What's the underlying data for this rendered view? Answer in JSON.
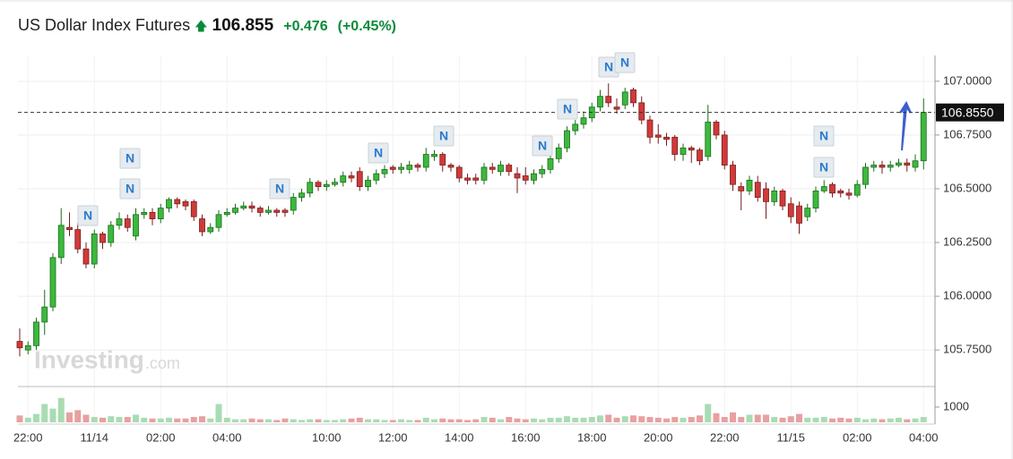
{
  "header": {
    "title": "US Dollar Index Futures",
    "price": "106.855",
    "change": "+0.476",
    "change_pct": "(+0.45%)"
  },
  "chart_data": {
    "type": "candlestick",
    "categories": [
      null,
      "22:00",
      null,
      null,
      null,
      null,
      null,
      null,
      null,
      "11/14",
      null,
      null,
      null,
      null,
      null,
      null,
      null,
      "02:00",
      null,
      null,
      null,
      null,
      null,
      null,
      null,
      "04:00",
      null,
      null,
      null,
      null,
      null,
      null,
      null,
      null,
      null,
      null,
      null,
      "10:00",
      null,
      null,
      null,
      null,
      null,
      null,
      null,
      "12:00",
      null,
      null,
      null,
      null,
      null,
      null,
      null,
      "14:00",
      null,
      null,
      null,
      null,
      null,
      null,
      null,
      "16:00",
      null,
      null,
      null,
      null,
      null,
      null,
      null,
      "18:00",
      null,
      null,
      null,
      null,
      null,
      null,
      null,
      "20:00",
      null,
      null,
      null,
      null,
      null,
      null,
      null,
      "22:00",
      null,
      null,
      null,
      null,
      null,
      null,
      null,
      "11/15",
      null,
      null,
      null,
      null,
      null,
      null,
      null,
      "02:00",
      null,
      null,
      null,
      null,
      null,
      null,
      null,
      "04:00"
    ],
    "open": [
      105.79,
      105.75,
      105.77,
      105.88,
      105.95,
      106.18,
      106.32,
      106.31,
      106.22,
      106.15,
      106.29,
      106.25,
      106.33,
      106.36,
      106.28,
      106.38,
      106.39,
      106.36,
      106.41,
      106.45,
      106.44,
      106.44,
      106.36,
      106.3,
      106.32,
      106.38,
      106.39,
      106.41,
      106.42,
      106.41,
      106.39,
      106.4,
      106.4,
      106.4,
      106.46,
      106.48,
      106.53,
      106.51,
      106.52,
      106.53,
      106.56,
      106.58,
      106.51,
      106.54,
      106.57,
      106.6,
      106.59,
      106.59,
      106.61,
      106.6,
      106.65,
      106.66,
      106.61,
      106.6,
      106.55,
      106.55,
      106.54,
      106.6,
      106.58,
      106.61,
      106.57,
      106.56,
      106.54,
      106.57,
      106.59,
      106.64,
      106.69,
      106.77,
      106.8,
      106.83,
      106.88,
      106.93,
      106.88,
      106.89,
      106.96,
      106.9,
      106.82,
      106.75,
      106.74,
      106.74,
      106.66,
      106.69,
      106.68,
      106.65,
      106.81,
      106.75,
      106.61,
      106.51,
      106.49,
      106.53,
      106.5,
      106.44,
      106.49,
      106.43,
      106.42,
      106.37,
      106.41,
      106.49,
      106.52,
      106.49,
      106.48,
      106.47,
      106.52,
      106.6,
      106.61,
      106.6,
      106.61,
      106.62,
      106.6,
      106.63
    ],
    "high": [
      105.85,
      105.79,
      105.9,
      106.03,
      106.2,
      106.41,
      106.39,
      106.34,
      106.25,
      106.31,
      106.3,
      106.35,
      106.39,
      106.38,
      106.41,
      106.41,
      106.41,
      106.43,
      106.46,
      106.46,
      106.45,
      106.45,
      106.38,
      106.34,
      106.4,
      106.41,
      106.43,
      106.44,
      106.44,
      106.42,
      106.42,
      106.41,
      106.41,
      106.48,
      106.5,
      106.55,
      106.54,
      106.54,
      106.55,
      106.58,
      106.58,
      106.6,
      106.56,
      106.59,
      106.61,
      106.61,
      106.62,
      106.63,
      106.62,
      106.69,
      106.68,
      106.67,
      106.62,
      106.61,
      106.57,
      106.57,
      106.62,
      106.62,
      106.63,
      106.62,
      106.6,
      106.6,
      106.59,
      106.61,
      106.67,
      106.71,
      106.79,
      106.82,
      106.86,
      106.9,
      106.96,
      106.99,
      106.92,
      106.97,
      106.97,
      106.93,
      106.84,
      106.8,
      106.76,
      106.75,
      106.71,
      106.7,
      106.69,
      106.89,
      106.82,
      106.77,
      106.63,
      106.53,
      106.56,
      106.56,
      106.53,
      106.51,
      106.5,
      106.46,
      106.44,
      106.43,
      106.51,
      106.54,
      106.53,
      106.5,
      106.5,
      106.54,
      106.62,
      106.63,
      106.63,
      106.63,
      106.64,
      106.64,
      106.66,
      106.92
    ],
    "low": [
      105.72,
      105.73,
      105.75,
      105.82,
      105.93,
      106.15,
      106.28,
      106.2,
      106.13,
      106.13,
      106.22,
      106.23,
      106.31,
      106.3,
      106.26,
      106.36,
      106.33,
      106.34,
      106.39,
      106.41,
      106.4,
      106.35,
      106.28,
      106.29,
      106.3,
      106.37,
      106.38,
      106.4,
      106.39,
      106.37,
      106.38,
      106.37,
      106.37,
      106.38,
      106.44,
      106.46,
      106.49,
      106.49,
      106.51,
      106.51,
      106.53,
      106.49,
      106.49,
      106.52,
      106.55,
      106.57,
      106.57,
      106.57,
      106.58,
      106.58,
      106.63,
      106.58,
      106.58,
      106.53,
      106.52,
      106.52,
      106.52,
      106.57,
      106.56,
      106.56,
      106.48,
      106.52,
      106.52,
      106.55,
      106.57,
      106.62,
      106.67,
      106.75,
      106.78,
      106.81,
      106.86,
      106.88,
      106.85,
      106.87,
      106.88,
      106.8,
      106.71,
      106.71,
      106.7,
      106.63,
      106.63,
      106.62,
      106.61,
      106.63,
      106.73,
      106.59,
      106.49,
      106.4,
      106.47,
      106.44,
      106.36,
      106.42,
      106.4,
      106.34,
      106.29,
      106.35,
      106.39,
      106.48,
      106.46,
      106.46,
      106.45,
      106.46,
      106.5,
      106.58,
      106.57,
      106.58,
      106.6,
      106.58,
      106.58,
      106.59
    ],
    "close": [
      105.76,
      105.77,
      105.88,
      105.95,
      106.18,
      106.33,
      106.31,
      106.22,
      106.15,
      106.29,
      106.25,
      106.33,
      106.36,
      106.32,
      106.38,
      106.39,
      106.36,
      106.41,
      106.45,
      106.43,
      106.42,
      106.37,
      106.3,
      106.32,
      106.38,
      106.39,
      106.41,
      106.42,
      106.41,
      106.39,
      106.4,
      106.39,
      106.39,
      106.46,
      106.48,
      106.53,
      106.51,
      106.52,
      106.53,
      106.56,
      106.55,
      106.51,
      106.54,
      106.57,
      106.59,
      106.59,
      106.6,
      106.61,
      106.6,
      106.66,
      106.66,
      106.61,
      106.6,
      106.55,
      106.54,
      106.54,
      106.6,
      106.59,
      106.61,
      106.58,
      106.55,
      106.54,
      106.57,
      106.59,
      106.64,
      106.69,
      106.77,
      106.8,
      106.83,
      106.88,
      106.93,
      106.9,
      106.87,
      106.95,
      106.9,
      106.82,
      106.74,
      106.74,
      106.73,
      106.66,
      106.69,
      106.68,
      106.63,
      106.81,
      106.75,
      106.61,
      106.52,
      106.49,
      106.54,
      106.46,
      106.44,
      106.49,
      106.42,
      106.37,
      106.34,
      106.41,
      106.49,
      106.51,
      106.48,
      106.48,
      106.47,
      106.52,
      106.6,
      106.61,
      106.6,
      106.61,
      106.62,
      106.61,
      106.63,
      106.855
    ],
    "volume": [
      450,
      300,
      550,
      1200,
      900,
      1600,
      650,
      800,
      500,
      350,
      300,
      400,
      350,
      350,
      500,
      300,
      250,
      250,
      300,
      250,
      250,
      350,
      400,
      250,
      1200,
      300,
      200,
      200,
      250,
      200,
      200,
      150,
      250,
      200,
      150,
      200,
      200,
      150,
      150,
      200,
      250,
      300,
      200,
      200,
      150,
      150,
      200,
      150,
      150,
      300,
      200,
      250,
      200,
      200,
      150,
      200,
      350,
      300,
      200,
      350,
      250,
      200,
      250,
      200,
      300,
      300,
      400,
      300,
      300,
      350,
      450,
      500,
      300,
      400,
      450,
      400,
      350,
      300,
      250,
      350,
      300,
      350,
      450,
      1200,
      600,
      350,
      650,
      350,
      500,
      500,
      500,
      350,
      300,
      400,
      550,
      300,
      300,
      350,
      250,
      300,
      250,
      300,
      200,
      250,
      200,
      250,
      300,
      200,
      250,
      350
    ],
    "up_color": "#3cb93c",
    "down_color": "#d03a3a",
    "up_volume_color": "#a9dcb3",
    "down_volume_color": "#e8a0a0",
    "ylim": [
      105.58,
      107.12
    ],
    "yticks": [
      {
        "value": 105.75,
        "label": "105.7500"
      },
      {
        "value": 106,
        "label": "106.0000"
      },
      {
        "value": 106.25,
        "label": "106.2500"
      },
      {
        "value": 106.5,
        "label": "106.5000"
      },
      {
        "value": 106.75,
        "label": "106.7500"
      },
      {
        "value": 107,
        "label": "107.0000"
      }
    ],
    "volume_ylim": [
      0,
      2350
    ],
    "volume_yticks": [
      1000
    ],
    "last_price": {
      "value": 106.855,
      "label": "106.8550"
    },
    "grid": true,
    "news": [
      "N",
      "N",
      "N",
      "N",
      "N",
      "N",
      "N",
      "N",
      "N",
      "N",
      "N",
      "N"
    ],
    "watermark": {
      "brand": "Investing",
      "suffix": ".com"
    }
  }
}
